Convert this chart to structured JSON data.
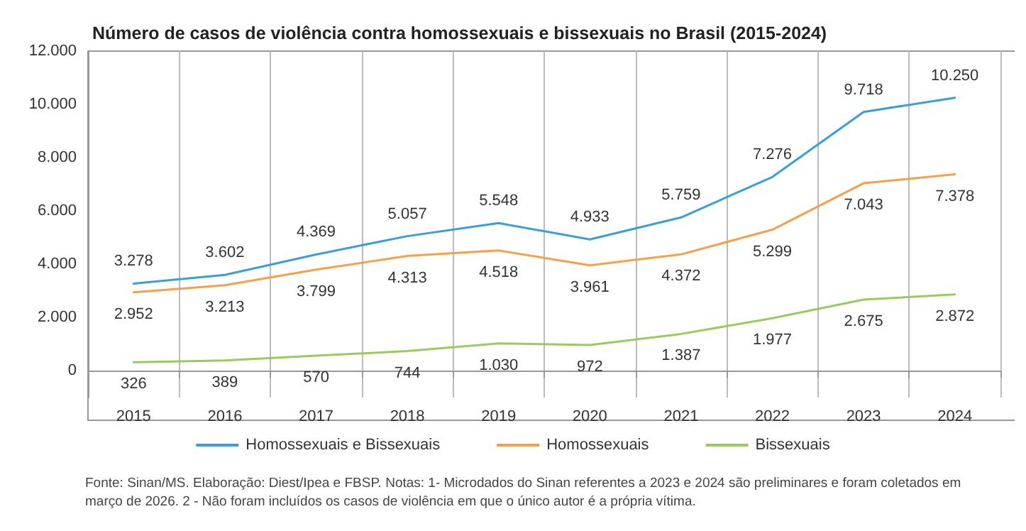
{
  "chart_data": {
    "type": "line",
    "title": "Número de casos de violência contra homossexuais e bissexuais no Brasil (2015-2024)",
    "categories": [
      "2015",
      "2016",
      "2017",
      "2018",
      "2019",
      "2020",
      "2021",
      "2022",
      "2023",
      "2024"
    ],
    "series": [
      {
        "name": "Homossexuais e Bissexuais",
        "color": "#3a9fd6",
        "values": [
          3278,
          3602,
          4369,
          5057,
          5548,
          4933,
          5759,
          7276,
          9718,
          10250
        ],
        "value_labels": [
          "3.278",
          "3.602",
          "4.369",
          "5.057",
          "5.548",
          "4.933",
          "5.759",
          "7.276",
          "9.718",
          "10.250"
        ]
      },
      {
        "name": "Homossexuais",
        "color": "#f5a04a",
        "values": [
          2952,
          3213,
          3799,
          4313,
          4518,
          3961,
          4372,
          5299,
          7043,
          7378
        ],
        "value_labels": [
          "2.952",
          "3.213",
          "3.799",
          "4.313",
          "4.518",
          "3.961",
          "4.372",
          "5.299",
          "7.043",
          "7.378"
        ]
      },
      {
        "name": "Bissexuais",
        "color": "#9bcb5c",
        "values": [
          326,
          389,
          570,
          744,
          1030,
          972,
          1387,
          1977,
          2675,
          2872
        ],
        "value_labels": [
          "326",
          "389",
          "570",
          "744",
          "1.030",
          "972",
          "1.387",
          "1.977",
          "2.675",
          "2.872"
        ]
      }
    ],
    "ylim": [
      -1000,
      12000
    ],
    "yticks": [
      0,
      {
        "value": 2000,
        "label": "2.000"
      },
      {
        "value": 4000,
        "label": "4.000"
      },
      {
        "value": 6000,
        "label": "6.000"
      },
      {
        "value": 8000,
        "label": "8.000"
      },
      {
        "value": 10000,
        "label": "10.000"
      },
      {
        "value": 12000,
        "label": "12.000"
      }
    ],
    "grid": "x",
    "legend": "bottom",
    "marker": "none",
    "line_style": "solid",
    "annotations": [
      "Fonte: Sinan/MS. Elaboração: Diest/Ipea e FBSP. Notas: 1- Microdados do Sinan referentes a 2023 e 2024 são preliminares e foram coletados em março de 2026. 2 - Não foram incluídos os casos de violência em que o único autor é a própria vítima."
    ]
  }
}
